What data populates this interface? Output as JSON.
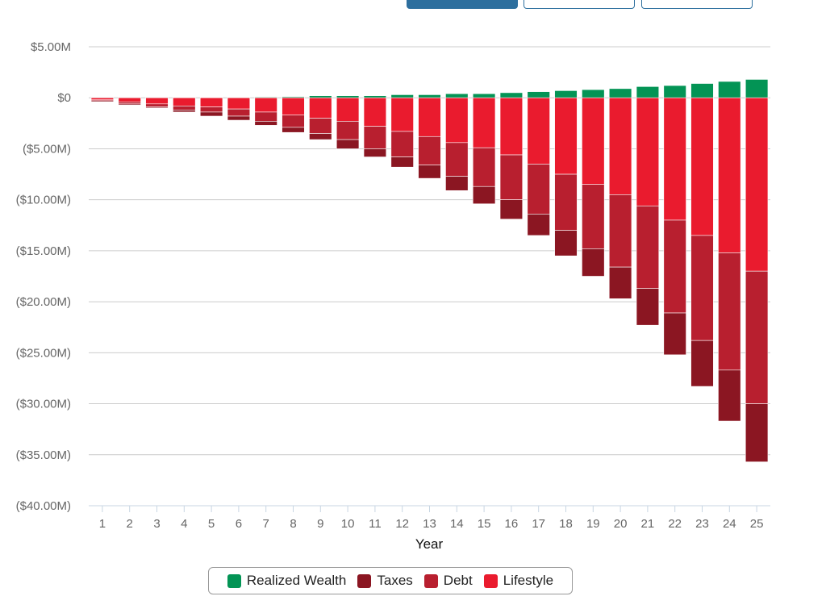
{
  "colors": {
    "realized_wealth": "#039455",
    "taxes": "#8b1622",
    "debt": "#b81f2f",
    "lifestyle": "#ea1b2e",
    "grid": "#cccccc",
    "axis": "#c8d6e3"
  },
  "chart_data": {
    "type": "bar",
    "stacked": true,
    "xlabel": "Year",
    "ylabel": "",
    "ylim": [
      -40,
      5
    ],
    "y_unit": "millions of dollars",
    "yticks": [
      {
        "value": 5,
        "label": "$5.00M"
      },
      {
        "value": 0,
        "label": "$0"
      },
      {
        "value": -5,
        "label": "($5.00M)"
      },
      {
        "value": -10,
        "label": "($10.00M)"
      },
      {
        "value": -15,
        "label": "($15.00M)"
      },
      {
        "value": -20,
        "label": "($20.00M)"
      },
      {
        "value": -25,
        "label": "($25.00M)"
      },
      {
        "value": -30,
        "label": "($30.00M)"
      },
      {
        "value": -35,
        "label": "($35.00M)"
      },
      {
        "value": -40,
        "label": "($40.00M)"
      }
    ],
    "categories": [
      "1",
      "2",
      "3",
      "4",
      "5",
      "6",
      "7",
      "8",
      "9",
      "10",
      "11",
      "12",
      "13",
      "14",
      "15",
      "16",
      "17",
      "18",
      "19",
      "20",
      "21",
      "22",
      "23",
      "24",
      "25"
    ],
    "series": [
      {
        "name": "Realized Wealth",
        "color_key": "realized_wealth",
        "values": [
          0.02,
          0.02,
          0.02,
          0.03,
          0.04,
          0.05,
          0.07,
          0.1,
          0.2,
          0.2,
          0.2,
          0.3,
          0.3,
          0.4,
          0.4,
          0.5,
          0.6,
          0.7,
          0.8,
          0.9,
          1.1,
          1.2,
          1.4,
          1.6,
          1.8
        ]
      },
      {
        "name": "Lifestyle",
        "color_key": "lifestyle",
        "values": [
          -0.2,
          -0.4,
          -0.6,
          -0.8,
          -0.9,
          -1.1,
          -1.4,
          -1.7,
          -2.0,
          -2.3,
          -2.8,
          -3.3,
          -3.8,
          -4.4,
          -4.9,
          -5.6,
          -6.5,
          -7.5,
          -8.5,
          -9.5,
          -10.6,
          -12.0,
          -13.5,
          -15.2,
          -17.0
        ]
      },
      {
        "name": "Debt",
        "color_key": "debt",
        "values": [
          -0.1,
          -0.2,
          -0.3,
          -0.4,
          -0.5,
          -0.7,
          -0.9,
          -1.2,
          -1.5,
          -1.8,
          -2.2,
          -2.5,
          -2.8,
          -3.3,
          -3.8,
          -4.4,
          -4.9,
          -5.5,
          -6.3,
          -7.1,
          -8.1,
          -9.1,
          -10.3,
          -11.5,
          -13.0
        ]
      },
      {
        "name": "Taxes",
        "color_key": "taxes",
        "values": [
          -0.1,
          -0.1,
          -0.1,
          -0.2,
          -0.4,
          -0.4,
          -0.4,
          -0.5,
          -0.6,
          -0.9,
          -0.8,
          -1.0,
          -1.3,
          -1.4,
          -1.7,
          -1.9,
          -2.1,
          -2.5,
          -2.7,
          -3.1,
          -3.6,
          -4.1,
          -4.5,
          -5.0,
          -5.7
        ]
      }
    ],
    "legend": {
      "position": "bottom-center",
      "entries": [
        {
          "label": "Realized Wealth",
          "color_key": "realized_wealth"
        },
        {
          "label": "Taxes",
          "color_key": "taxes"
        },
        {
          "label": "Debt",
          "color_key": "debt"
        },
        {
          "label": "Lifestyle",
          "color_key": "lifestyle"
        }
      ]
    },
    "grid": true
  }
}
